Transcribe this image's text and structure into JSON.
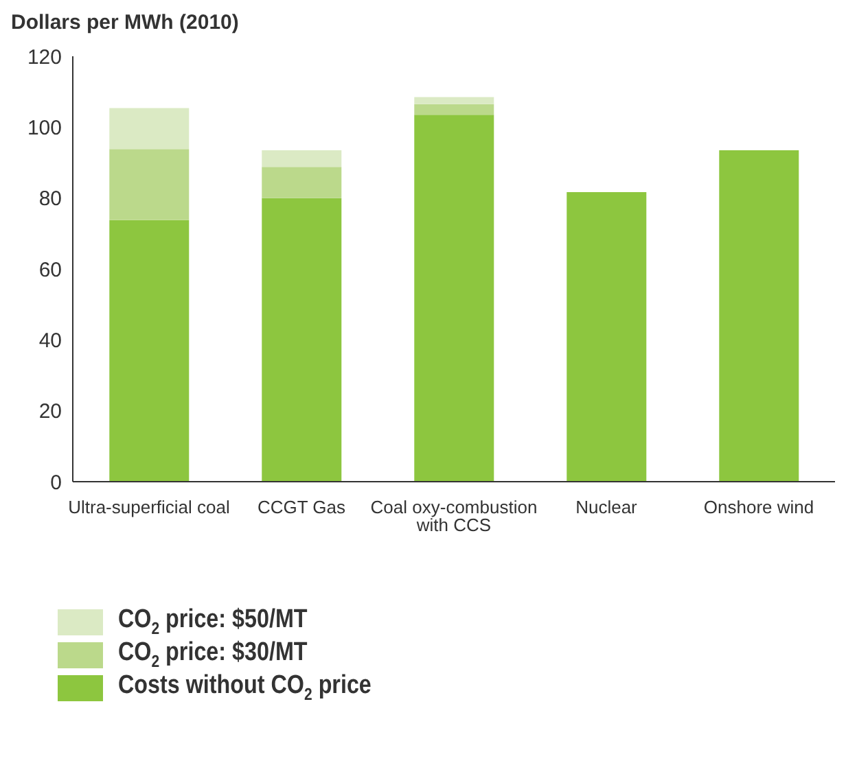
{
  "chart_data": {
    "type": "bar",
    "ylabel": "Dollars per MWh (2010)",
    "categories": [
      "Ultra-superficial coal",
      "CCGT Gas",
      "Coal oxy-combustion with CCS",
      "Nuclear",
      "Onshore wind"
    ],
    "series": [
      {
        "name": "Costs without CO$_{2}$ price",
        "color": "#8dc63f",
        "values": [
          73.8,
          80,
          103.5,
          81.7,
          93.5
        ]
      },
      {
        "name": "CO$_{2}$ price: $30/MT",
        "color": "#bbd98b",
        "values": [
          20,
          8.8,
          3,
          0,
          0
        ]
      },
      {
        "name": "CO$_{2}$ price: $50/MT",
        "color": "#dbeac4",
        "values": [
          11.6,
          4.7,
          2,
          0,
          0
        ]
      }
    ],
    "stacked": true,
    "ylim": [
      0,
      120
    ],
    "yticks": [
      0,
      20,
      40,
      60,
      80,
      100,
      120
    ],
    "grid": false,
    "legend": "bottom left"
  }
}
